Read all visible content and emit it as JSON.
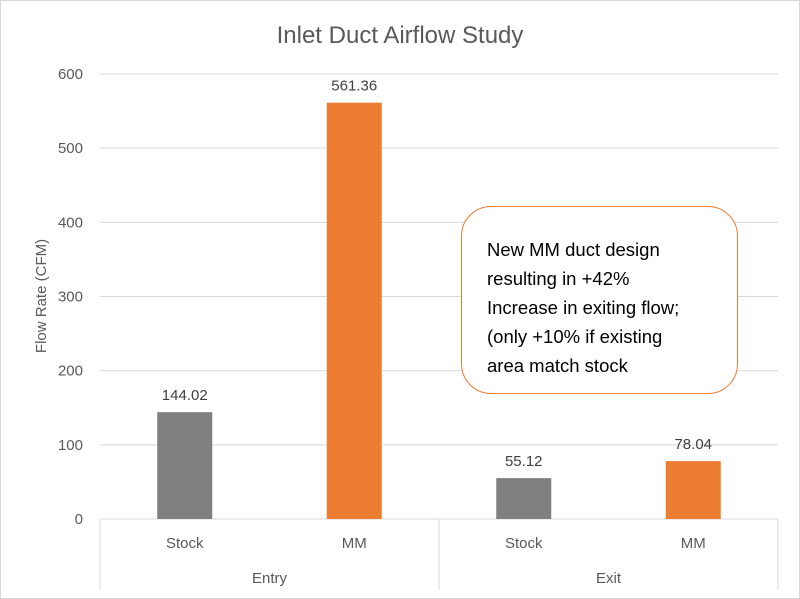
{
  "chart_data": {
    "type": "bar",
    "title": "Inlet Duct Airflow Study",
    "ylabel": "Flow Rate (CFM)",
    "xlabel": "",
    "ylim": [
      0,
      600
    ],
    "yticks": [
      0,
      100,
      200,
      300,
      400,
      500,
      600
    ],
    "grid": true,
    "legend": "none",
    "groups": [
      {
        "label": "Entry",
        "bars": [
          {
            "category": "Stock",
            "value": 144.02,
            "label": "144.02",
            "color": "#7f7f7f"
          },
          {
            "category": "MM",
            "value": 561.36,
            "label": "561.36",
            "color": "#ed7d31"
          }
        ]
      },
      {
        "label": "Exit",
        "bars": [
          {
            "category": "Stock",
            "value": 55.12,
            "label": "55.12",
            "color": "#7f7f7f"
          },
          {
            "category": "MM",
            "value": 78.04,
            "label": "78.04",
            "color": "#ed7d31"
          }
        ]
      }
    ],
    "annotation": "New MM duct design\nresulting in +42%\nIncrease in exiting flow;\n(only +10% if existing\narea match stock"
  },
  "colors": {
    "stock": "#7f7f7f",
    "mm": "#ed7d31",
    "gridline": "#d9d9d9",
    "text": "#595959"
  }
}
